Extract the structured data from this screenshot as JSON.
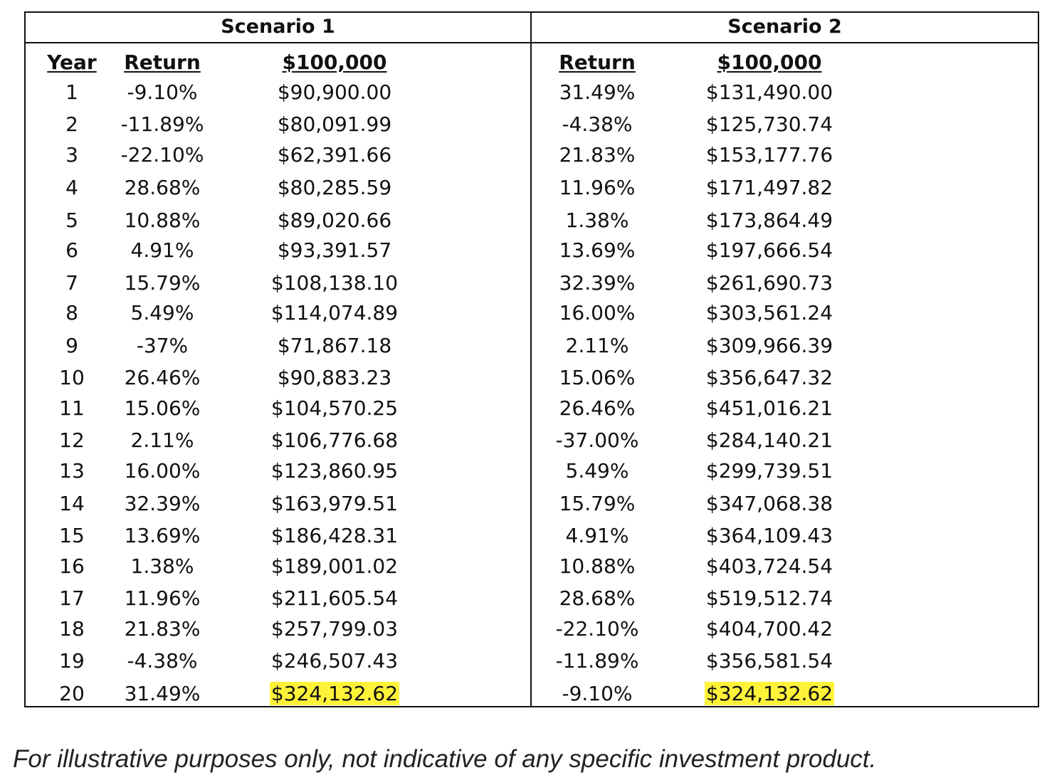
{
  "scenario1": {
    "title": "Scenario 1"
  },
  "scenario2": {
    "title": "Scenario 2"
  },
  "headers": {
    "year": "Year",
    "s1_return": "Return",
    "s1_value": "$100,000",
    "s2_return": "Return",
    "s2_value": "$100,000"
  },
  "rows": [
    {
      "year": "1",
      "r1": "-9.10%",
      "v1": "$90,900.00",
      "r2": "31.49%",
      "v2": "$131,490.00"
    },
    {
      "year": "2",
      "r1": "-11.89%",
      "v1": "$80,091.99",
      "r2": "-4.38%",
      "v2": "$125,730.74"
    },
    {
      "year": "3",
      "r1": "-22.10%",
      "v1": "$62,391.66",
      "r2": "21.83%",
      "v2": "$153,177.76"
    },
    {
      "year": "4",
      "r1": "28.68%",
      "v1": "$80,285.59",
      "r2": "11.96%",
      "v2": "$171,497.82"
    },
    {
      "year": "5",
      "r1": "10.88%",
      "v1": "$89,020.66",
      "r2": "1.38%",
      "v2": "$173,864.49"
    },
    {
      "year": "6",
      "r1": "4.91%",
      "v1": "$93,391.57",
      "r2": "13.69%",
      "v2": "$197,666.54"
    },
    {
      "year": "7",
      "r1": "15.79%",
      "v1": "$108,138.10",
      "r2": "32.39%",
      "v2": "$261,690.73"
    },
    {
      "year": "8",
      "r1": "5.49%",
      "v1": "$114,074.89",
      "r2": "16.00%",
      "v2": "$303,561.24"
    },
    {
      "year": "9",
      "r1": "-37%",
      "v1": "$71,867.18",
      "r2": "2.11%",
      "v2": "$309,966.39"
    },
    {
      "year": "10",
      "r1": "26.46%",
      "v1": "$90,883.23",
      "r2": "15.06%",
      "v2": "$356,647.32"
    },
    {
      "year": "11",
      "r1": "15.06%",
      "v1": "$104,570.25",
      "r2": "26.46%",
      "v2": "$451,016.21"
    },
    {
      "year": "12",
      "r1": "2.11%",
      "v1": "$106,776.68",
      "r2": "-37.00%",
      "v2": "$284,140.21"
    },
    {
      "year": "13",
      "r1": "16.00%",
      "v1": "$123,860.95",
      "r2": "5.49%",
      "v2": "$299,739.51"
    },
    {
      "year": "14",
      "r1": "32.39%",
      "v1": "$163,979.51",
      "r2": "15.79%",
      "v2": "$347,068.38"
    },
    {
      "year": "15",
      "r1": "13.69%",
      "v1": "$186,428.31",
      "r2": "4.91%",
      "v2": "$364,109.43"
    },
    {
      "year": "16",
      "r1": "1.38%",
      "v1": "$189,001.02",
      "r2": "10.88%",
      "v2": "$403,724.54"
    },
    {
      "year": "17",
      "r1": "11.96%",
      "v1": "$211,605.54",
      "r2": "28.68%",
      "v2": "$519,512.74"
    },
    {
      "year": "18",
      "r1": "21.83%",
      "v1": "$257,799.03",
      "r2": "-22.10%",
      "v2": "$404,700.42"
    },
    {
      "year": "19",
      "r1": "-4.38%",
      "v1": "$246,507.43",
      "r2": "-11.89%",
      "v2": "$356,581.54"
    },
    {
      "year": "20",
      "r1": "31.49%",
      "v1": "$324,132.62",
      "r2": "-9.10%",
      "v2": "$324,132.62"
    }
  ],
  "highlight_color": "#fff33a",
  "footnote": "For illustrative purposes only, not indicative of any specific investment product."
}
